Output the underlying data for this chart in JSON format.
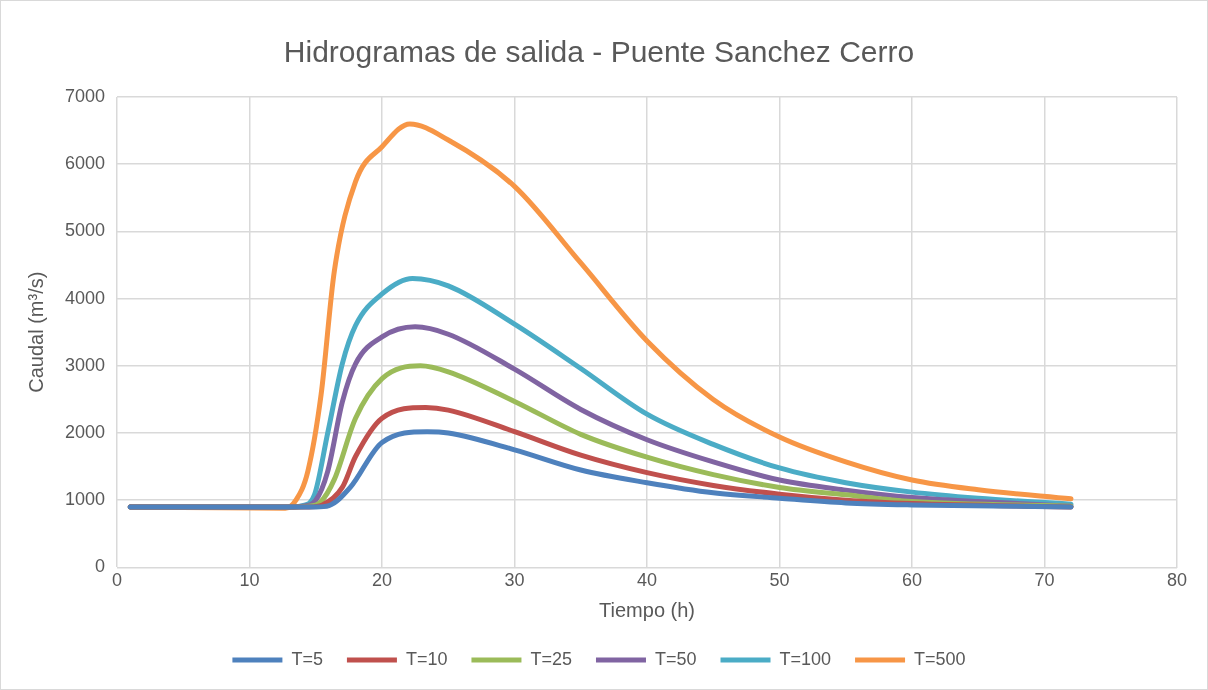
{
  "chart_data": {
    "type": "line",
    "title": "Hidrogramas de salida - Puente Sanchez Cerro",
    "xlabel": "Tiempo (h)",
    "ylabel": "Caudal (m³/s)",
    "xlim": [
      0,
      80
    ],
    "xticks": [
      0,
      10,
      20,
      30,
      40,
      50,
      60,
      70,
      80
    ],
    "ylim": [
      0,
      7000
    ],
    "yticks": [
      0,
      1000,
      2000,
      3000,
      4000,
      5000,
      6000,
      7000
    ],
    "grid": true,
    "legend": "bottom",
    "marker": "none",
    "line_style": "solid",
    "series": [
      {
        "name": "T=5",
        "color": "#4e81bd",
        "x": [
          1,
          13,
          15,
          16,
          17.6,
          20,
          23.4,
          25,
          30,
          35,
          40,
          45,
          50,
          55,
          60,
          72
        ],
        "values": [
          900,
          900,
          900,
          920,
          1190,
          1860,
          2020,
          2000,
          1750,
          1450,
          1260,
          1110,
          1030,
          960,
          930,
          900
        ]
      },
      {
        "name": "T=10",
        "color": "#c0504d",
        "x": [
          1,
          13,
          14.5,
          15.5,
          17,
          18,
          20,
          23.3,
          25,
          30,
          35,
          40,
          45,
          50,
          55,
          60,
          72
        ],
        "values": [
          900,
          900,
          900,
          930,
          1190,
          1650,
          2220,
          2380,
          2340,
          2020,
          1670,
          1410,
          1220,
          1090,
          1000,
          950,
          900
        ]
      },
      {
        "name": "T=25",
        "color": "#9bbb59",
        "x": [
          1,
          13,
          14.5,
          15.3,
          16.4,
          18,
          20,
          22.9,
          25,
          30,
          35,
          40,
          45,
          50,
          55,
          60,
          72
        ],
        "values": [
          900,
          900,
          910,
          960,
          1310,
          2220,
          2810,
          3000,
          2910,
          2470,
          1980,
          1640,
          1380,
          1190,
          1080,
          980,
          910
        ]
      },
      {
        "name": "T=50",
        "color": "#8064a2",
        "x": [
          1,
          13,
          14,
          15,
          15.9,
          17,
          18,
          20,
          22.5,
          25,
          30,
          35,
          40,
          45,
          50,
          55,
          60,
          65,
          72
        ],
        "values": [
          900,
          900,
          910,
          1000,
          1430,
          2460,
          3030,
          3430,
          3580,
          3470,
          2950,
          2350,
          1900,
          1570,
          1300,
          1150,
          1040,
          980,
          910
        ]
      },
      {
        "name": "T=100",
        "color": "#4bacc6",
        "x": [
          1,
          13,
          14,
          14.9,
          15.9,
          17,
          18,
          20,
          22.3,
          25,
          30,
          35,
          40,
          45,
          50,
          55,
          60,
          65,
          72
        ],
        "values": [
          900,
          900,
          920,
          1080,
          2000,
          3030,
          3600,
          4070,
          4300,
          4190,
          3620,
          2960,
          2280,
          1830,
          1480,
          1260,
          1120,
          1030,
          940
        ]
      },
      {
        "name": "T=500",
        "color": "#f79646",
        "x": [
          1,
          12.7,
          13.5,
          14.4,
          15.4,
          16.4,
          18,
          20,
          22.1,
          25,
          30,
          35,
          40,
          45,
          50,
          55,
          60,
          65,
          72
        ],
        "values": [
          900,
          880,
          1000,
          1430,
          2570,
          4410,
          5740,
          6260,
          6600,
          6360,
          5670,
          4530,
          3370,
          2500,
          1940,
          1570,
          1300,
          1155,
          1020
        ]
      }
    ]
  }
}
